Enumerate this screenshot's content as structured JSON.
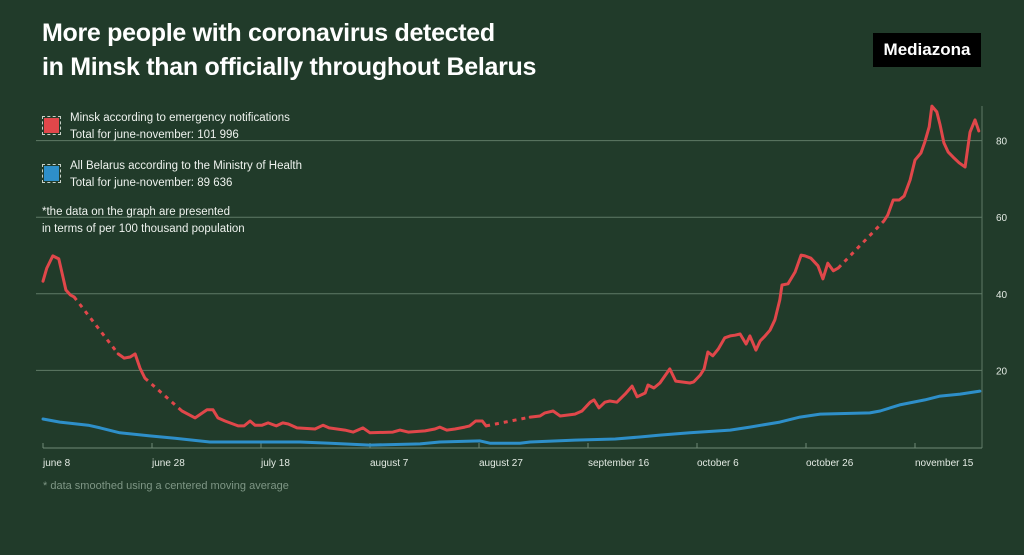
{
  "title_lines": [
    "More people with coronavirus detected",
    "in Minsk than officially throughout Belarus"
  ],
  "logo": "Mediazona",
  "legend": [
    {
      "line1": "Minsk according to emergency notifications",
      "line2": "Total for june-november: 101 996",
      "color": "#e0474a"
    },
    {
      "line1": "All Belarus according to the Ministry of Health",
      "line2": "Total for june-november: 89 636",
      "color": "#2e8fc9"
    }
  ],
  "note_lines": [
    "*the data on the graph are presented",
    "in terms of per 100 thousand population"
  ],
  "footnote": "* data smoothed using a centered moving average",
  "chart_data": {
    "type": "line",
    "title": "More people with coronavirus detected in Minsk than officially throughout Belarus",
    "xlabel": "",
    "ylabel": "cases per 100 thousand population",
    "x_unit": "days since june 8",
    "xlim": [
      0,
      172
    ],
    "ylim": [
      0,
      90
    ],
    "yticks": [
      20,
      40,
      60,
      80
    ],
    "xticks": [
      {
        "day": 0,
        "label": "june 8"
      },
      {
        "day": 20,
        "label": "june 28"
      },
      {
        "day": 40,
        "label": "july 18"
      },
      {
        "day": 60,
        "label": "august 7"
      },
      {
        "day": 80,
        "label": "august 27"
      },
      {
        "day": 100,
        "label": "september 16"
      },
      {
        "day": 120,
        "label": "october 6"
      },
      {
        "day": 140,
        "label": "october 26"
      },
      {
        "day": 160,
        "label": "november 15"
      }
    ],
    "grid": true,
    "legend_position": "top-left",
    "series": [
      {
        "name": "Minsk according to emergency notifications",
        "color": "#e0474a",
        "segments": [
          {
            "style": "solid",
            "points": [
              [
                0,
                43.3
              ],
              [
                0.7,
                46.7
              ],
              [
                1.8,
                49.9
              ],
              [
                2.9,
                49.1
              ],
              [
                3.7,
                44.1
              ],
              [
                4.2,
                41.0
              ],
              [
                5.0,
                39.7
              ],
              [
                5.7,
                39.2
              ]
            ]
          },
          {
            "style": "dotted",
            "points": [
              [
                5.7,
                39.2
              ],
              [
                13.8,
                24.3
              ]
            ]
          },
          {
            "style": "solid",
            "points": [
              [
                13.8,
                24.3
              ],
              [
                14.9,
                23.2
              ],
              [
                16.0,
                23.5
              ],
              [
                16.9,
                24.3
              ],
              [
                17.8,
                20.6
              ],
              [
                18.7,
                18.0
              ]
            ]
          },
          {
            "style": "dotted",
            "points": [
              [
                18.7,
                18.0
              ],
              [
                25.5,
                9.4
              ]
            ]
          },
          {
            "style": "solid",
            "points": [
              [
                25.5,
                9.4
              ],
              [
                27.9,
                7.6
              ],
              [
                30.1,
                9.7
              ],
              [
                31.2,
                9.7
              ],
              [
                32.1,
                7.6
              ],
              [
                33.4,
                6.8
              ],
              [
                35.8,
                5.5
              ],
              [
                36.9,
                5.5
              ],
              [
                38.0,
                6.8
              ],
              [
                38.9,
                5.7
              ],
              [
                40.2,
                5.7
              ],
              [
                41.3,
                6.3
              ],
              [
                42.8,
                5.5
              ],
              [
                44.0,
                6.3
              ],
              [
                45.0,
                6.0
              ],
              [
                46.6,
                5.0
              ],
              [
                49.9,
                4.7
              ],
              [
                51.4,
                5.7
              ],
              [
                52.5,
                5.0
              ],
              [
                55.4,
                4.4
              ],
              [
                56.9,
                3.9
              ],
              [
                58.7,
                5.0
              ],
              [
                60.0,
                3.7
              ],
              [
                64.2,
                3.9
              ],
              [
                65.5,
                4.4
              ],
              [
                67.0,
                3.9
              ],
              [
                70.1,
                4.2
              ],
              [
                71.9,
                4.7
              ],
              [
                72.8,
                5.2
              ],
              [
                74.1,
                4.4
              ],
              [
                75.6,
                4.7
              ],
              [
                77.4,
                5.2
              ],
              [
                78.3,
                5.5
              ],
              [
                79.4,
                6.8
              ],
              [
                80.6,
                6.8
              ],
              [
                81.3,
                5.5
              ]
            ]
          },
          {
            "style": "dotted",
            "points": [
              [
                81.3,
                5.5
              ],
              [
                89.4,
                7.8
              ]
            ]
          },
          {
            "style": "solid",
            "points": [
              [
                89.4,
                7.8
              ],
              [
                91.2,
                8.1
              ],
              [
                92.1,
                8.9
              ],
              [
                93.6,
                9.4
              ],
              [
                94.9,
                8.1
              ],
              [
                97.6,
                8.6
              ],
              [
                98.9,
                9.4
              ],
              [
                100.4,
                11.7
              ],
              [
                101.1,
                12.3
              ],
              [
                102.0,
                10.2
              ],
              [
                103.1,
                11.7
              ],
              [
                104.0,
                12.0
              ],
              [
                105.3,
                11.7
              ],
              [
                106.8,
                13.8
              ],
              [
                108.1,
                15.9
              ],
              [
                109.0,
                13.1
              ],
              [
                110.5,
                14.1
              ],
              [
                111.0,
                16.2
              ],
              [
                112.1,
                15.4
              ],
              [
                113.2,
                16.7
              ],
              [
                115.0,
                20.4
              ],
              [
                116.1,
                17.2
              ],
              [
                118.7,
                16.7
              ],
              [
                119.4,
                17.0
              ],
              [
                120.6,
                18.8
              ],
              [
                121.3,
                20.4
              ],
              [
                122.0,
                24.8
              ],
              [
                122.9,
                23.8
              ],
              [
                123.9,
                25.6
              ],
              [
                125.1,
                28.5
              ],
              [
                126.1,
                29.0
              ],
              [
                127.0,
                29.2
              ],
              [
                127.9,
                29.5
              ],
              [
                129.0,
                26.9
              ],
              [
                129.7,
                29.0
              ],
              [
                130.8,
                25.3
              ],
              [
                131.6,
                27.7
              ],
              [
                132.5,
                29.0
              ],
              [
                133.4,
                30.5
              ],
              [
                134.3,
                33.2
              ],
              [
                135.2,
                38.4
              ],
              [
                135.6,
                42.3
              ],
              [
                136.7,
                42.6
              ],
              [
                138.0,
                45.7
              ],
              [
                139.1,
                50.1
              ],
              [
                139.8,
                49.9
              ],
              [
                140.9,
                49.3
              ],
              [
                142.2,
                47.3
              ],
              [
                143.1,
                43.9
              ],
              [
                144.0,
                48.0
              ],
              [
                145.0,
                46.0
              ],
              [
                145.9,
                46.7
              ]
            ]
          },
          {
            "style": "dotted",
            "points": [
              [
                145.9,
                46.7
              ],
              [
                154.3,
                59.0
              ]
            ]
          },
          {
            "style": "solid",
            "points": [
              [
                154.3,
                59.0
              ],
              [
                155.0,
                60.6
              ],
              [
                156.0,
                64.5
              ],
              [
                157.1,
                64.5
              ],
              [
                158.0,
                65.5
              ],
              [
                159.1,
                69.7
              ],
              [
                160.0,
                74.9
              ],
              [
                161.1,
                76.8
              ],
              [
                161.8,
                79.6
              ],
              [
                162.6,
                83.6
              ],
              [
                163.1,
                89.0
              ],
              [
                164.0,
                87.5
              ],
              [
                164.6,
                84.1
              ],
              [
                165.3,
                79.4
              ],
              [
                166.1,
                77.0
              ],
              [
                167.0,
                75.7
              ],
              [
                168.1,
                74.2
              ],
              [
                169.2,
                73.1
              ],
              [
                170.1,
                82.2
              ],
              [
                171.0,
                85.4
              ],
              [
                171.7,
                82.5
              ]
            ]
          }
        ]
      },
      {
        "name": "All Belarus according to the Ministry of Health",
        "color": "#2e8fc9",
        "segments": [
          {
            "style": "solid",
            "points": [
              [
                0,
                7.3
              ],
              [
                3.1,
                6.5
              ],
              [
                8.3,
                5.7
              ],
              [
                10.5,
                5.0
              ],
              [
                14.1,
                3.7
              ],
              [
                19.6,
                2.9
              ],
              [
                24.2,
                2.3
              ],
              [
                30.6,
                1.3
              ],
              [
                39.8,
                1.3
              ],
              [
                47.2,
                1.3
              ],
              [
                52.7,
                1.0
              ],
              [
                60.0,
                0.5
              ],
              [
                69.2,
                0.8
              ],
              [
                72.8,
                1.3
              ],
              [
                80.2,
                1.6
              ],
              [
                82.0,
                1.0
              ],
              [
                87.5,
                1.0
              ],
              [
                89.4,
                1.3
              ],
              [
                97.6,
                1.8
              ],
              [
                105.0,
                2.1
              ],
              [
                109.5,
                2.6
              ],
              [
                113.2,
                3.1
              ],
              [
                118.7,
                3.7
              ],
              [
                126.1,
                4.4
              ],
              [
                129.7,
                5.2
              ],
              [
                135.2,
                6.5
              ],
              [
                138.9,
                7.8
              ],
              [
                142.6,
                8.6
              ],
              [
                151.7,
                8.9
              ],
              [
                153.6,
                9.4
              ],
              [
                157.2,
                11.0
              ],
              [
                161.8,
                12.3
              ],
              [
                164.6,
                13.3
              ],
              [
                168.3,
                13.8
              ],
              [
                171.9,
                14.6
              ]
            ]
          }
        ]
      }
    ]
  }
}
